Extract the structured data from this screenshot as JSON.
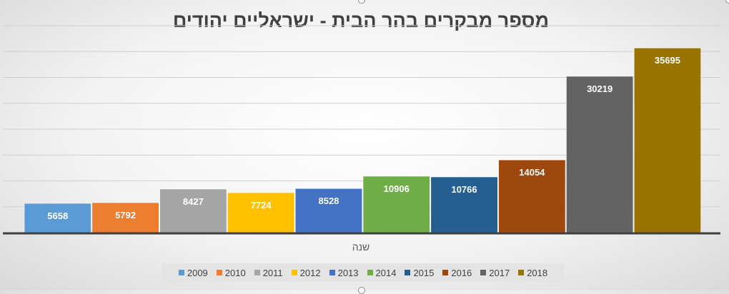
{
  "chart_data": {
    "type": "bar",
    "title": "מספר מבקרים בהר הבית - ישראליים יהודים",
    "xlabel": "שנה",
    "ylabel": "",
    "ylim": [
      0,
      40000
    ],
    "gridlines": true,
    "legend_position": "bottom",
    "data_labels": true,
    "series": [
      {
        "name": "2009",
        "value": 5658,
        "color": "#5b9bd5"
      },
      {
        "name": "2010",
        "value": 5792,
        "color": "#ed7d31"
      },
      {
        "name": "2011",
        "value": 8427,
        "color": "#a5a5a5"
      },
      {
        "name": "2012",
        "value": 7724,
        "color": "#ffc000"
      },
      {
        "name": "2013",
        "value": 8528,
        "color": "#4472c4"
      },
      {
        "name": "2014",
        "value": 10906,
        "color": "#70ad47"
      },
      {
        "name": "2015",
        "value": 10766,
        "color": "#255e91"
      },
      {
        "name": "2016",
        "value": 14054,
        "color": "#9e480e"
      },
      {
        "name": "2017",
        "value": 30219,
        "color": "#636363"
      },
      {
        "name": "2018",
        "value": 35695,
        "color": "#997300"
      }
    ]
  }
}
